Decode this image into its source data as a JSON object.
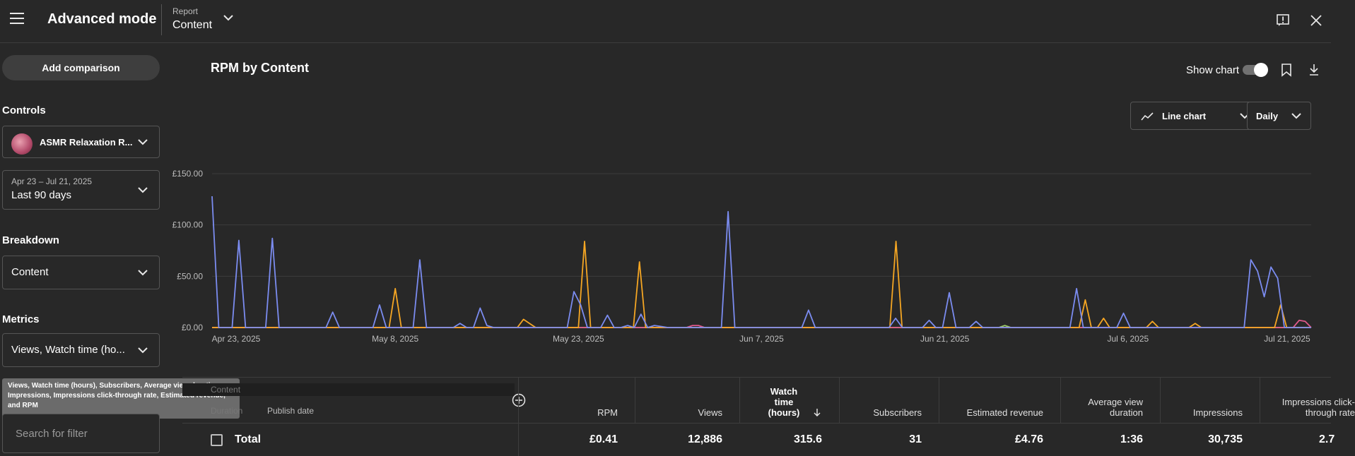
{
  "header": {
    "title": "Advanced mode",
    "report_label": "Report",
    "report_value": "Content"
  },
  "sidebar": {
    "add_comparison": "Add comparison",
    "controls_label": "Controls",
    "channel_name": "ASMR Relaxation R...",
    "date_range_small": "Apr 23 – Jul 21, 2025",
    "date_range_value": "Last 90 days",
    "breakdown_label": "Breakdown",
    "breakdown_value": "Content",
    "metrics_label": "Metrics",
    "metrics_value": "Views, Watch time (ho...",
    "metrics_tooltip": "Views, Watch time (hours), Subscribers, Average view duration, Impressions, Impressions click-through rate, Estimated revenue, and RPM",
    "search_placeholder": "Search for filter"
  },
  "main": {
    "chart_title": "RPM by Content",
    "show_chart_label": "Show chart",
    "chart_type_label": "Line chart",
    "interval_label": "Daily"
  },
  "chart_data": {
    "type": "line",
    "title": "RPM by Content",
    "xlabel": "",
    "ylabel": "",
    "ylim": [
      0,
      150
    ],
    "y_ticks": [
      "£0.00",
      "£50.00",
      "£100.00",
      "£150.00"
    ],
    "x_ticks": [
      "Apr 23, 2025",
      "May 8, 2025",
      "May 23, 2025",
      "Jun 7, 2025",
      "Jun 21, 2025",
      "Jul 6, 2025",
      "Jul 21, 2025"
    ],
    "grid": true,
    "colors": [
      "#7b8cf0",
      "#f5a623",
      "#e0598b",
      "#9ccc65"
    ],
    "series": [
      {
        "values": [
          128,
          0,
          0,
          0,
          85,
          0,
          0,
          0,
          0,
          87,
          0,
          0,
          0,
          0,
          0,
          0,
          0,
          0,
          15,
          0,
          0,
          0,
          0,
          0,
          0,
          22,
          0,
          0,
          0,
          0,
          0,
          66,
          0,
          0,
          0,
          0,
          0,
          4,
          0,
          0,
          19,
          2,
          0,
          0,
          0,
          0,
          0,
          0,
          0,
          0,
          0,
          0,
          0,
          0,
          35,
          22,
          0,
          0,
          0,
          12,
          0,
          0,
          2,
          0,
          13,
          0,
          2,
          1,
          0,
          0,
          0,
          0,
          0,
          0,
          0,
          0,
          0,
          113,
          0,
          0,
          0,
          0,
          0,
          0,
          0,
          0,
          0,
          0,
          0,
          17,
          0,
          0,
          0,
          0,
          0,
          0,
          0,
          0,
          0,
          0,
          0,
          0,
          9,
          0,
          0,
          0,
          0,
          7,
          0,
          0,
          34,
          0,
          0,
          0,
          6,
          0,
          0,
          0,
          0,
          0,
          0,
          0,
          0,
          0,
          0,
          0,
          0,
          0,
          0,
          38,
          0,
          0,
          0,
          0,
          0,
          0,
          14,
          0,
          0,
          0,
          0,
          0,
          0,
          0,
          0,
          0,
          0,
          0,
          0,
          0,
          0,
          0,
          0,
          0,
          0,
          66,
          55,
          30,
          59,
          48,
          0,
          0,
          0,
          0,
          0
        ]
      },
      {
        "values": [
          0,
          0,
          0,
          0,
          0,
          0,
          0,
          0,
          0,
          0,
          0,
          0,
          0,
          0,
          0,
          0,
          0,
          0,
          0,
          0,
          0,
          0,
          0,
          0,
          0,
          0,
          0,
          0,
          0,
          0,
          38,
          0,
          0,
          0,
          0,
          0,
          0,
          0,
          0,
          0,
          0,
          0,
          0,
          0,
          0,
          0,
          0,
          0,
          0,
          0,
          0,
          8,
          4,
          0,
          0,
          0,
          0,
          0,
          0,
          0,
          0,
          84,
          0,
          0,
          0,
          0,
          0,
          0,
          0,
          0,
          64,
          0,
          0,
          0,
          0,
          0,
          0,
          0,
          0,
          0,
          0,
          0,
          0,
          0,
          0,
          0,
          0,
          0,
          0,
          0,
          0,
          0,
          0,
          0,
          0,
          0,
          0,
          0,
          0,
          0,
          0,
          0,
          0,
          0,
          0,
          0,
          0,
          0,
          0,
          0,
          0,
          0,
          84,
          0,
          0,
          0,
          0,
          0,
          0,
          0,
          0,
          0,
          0,
          0,
          0,
          0,
          0,
          0,
          0,
          0,
          0,
          0,
          0,
          0,
          0,
          0,
          0,
          0,
          0,
          0,
          0,
          0,
          0,
          27,
          0,
          0,
          9,
          0,
          0,
          0,
          0,
          0,
          0,
          0,
          6,
          0,
          0,
          0,
          0,
          0,
          0,
          4,
          0,
          0,
          0,
          0,
          0,
          0,
          0,
          0,
          0,
          0,
          0,
          0,
          0,
          22,
          0,
          0,
          0,
          0,
          0
        ]
      },
      {
        "values": [
          0,
          0,
          0,
          0,
          0,
          0,
          0,
          0,
          0,
          0,
          0,
          0,
          0,
          0,
          0,
          0,
          0,
          0,
          0,
          0,
          0,
          0,
          0,
          0,
          0,
          0,
          0,
          0,
          0,
          0,
          0,
          0,
          0,
          0,
          0,
          0,
          0,
          0,
          0,
          0,
          0,
          0,
          0,
          0,
          0,
          0,
          0,
          0,
          0,
          0,
          0,
          0,
          0,
          0,
          0,
          0,
          0,
          0,
          0,
          0,
          0,
          0,
          0,
          0,
          0,
          0,
          0,
          0,
          0,
          0,
          0,
          0,
          0,
          0,
          0,
          0,
          0,
          0,
          0,
          0,
          2,
          2,
          0,
          0,
          0,
          0,
          0,
          0,
          0,
          0,
          0,
          0,
          0,
          0,
          0,
          0,
          0,
          0,
          0,
          0,
          0,
          0,
          0,
          0,
          0,
          0,
          0,
          0,
          0,
          0,
          0,
          0,
          0,
          0,
          0,
          0,
          0,
          0,
          0,
          0,
          0,
          0,
          0,
          0,
          0,
          0,
          0,
          0,
          0,
          0,
          0,
          0,
          0,
          0,
          0,
          0,
          0,
          0,
          0,
          0,
          0,
          0,
          0,
          0,
          0,
          0,
          0,
          0,
          0,
          0,
          0,
          0,
          0,
          0,
          0,
          0,
          0,
          0,
          0,
          0,
          0,
          0,
          0,
          0,
          0,
          0,
          0,
          0,
          0,
          0,
          0,
          0,
          0,
          0,
          0,
          0,
          0,
          0,
          0,
          0,
          0,
          7,
          6,
          0
        ]
      },
      {
        "values": [
          0,
          0,
          0,
          0,
          0,
          0,
          0,
          0,
          0,
          0,
          0,
          0,
          0,
          0,
          0,
          0,
          0,
          0,
          0,
          0,
          0,
          0,
          0,
          0,
          0,
          0,
          0,
          0,
          0,
          0,
          0,
          0,
          0,
          0,
          0,
          0,
          0,
          0,
          0,
          0,
          0,
          0,
          0,
          0,
          0,
          0,
          0,
          0,
          0,
          0,
          0,
          0,
          0,
          0,
          0,
          0,
          0,
          0,
          0,
          0,
          0,
          0,
          0,
          0,
          0,
          0,
          0,
          0,
          0,
          0,
          0,
          0,
          0,
          0,
          0,
          0,
          0,
          0,
          0,
          0,
          0,
          0,
          0,
          0,
          0,
          0,
          0,
          0,
          0,
          0,
          0,
          0,
          0,
          0,
          0,
          0,
          0,
          0,
          0,
          0,
          0,
          0,
          0,
          0,
          0,
          0,
          0,
          0,
          0,
          0,
          0,
          0,
          0,
          0,
          0,
          0,
          0,
          0,
          0,
          0,
          0,
          0,
          0,
          0,
          0,
          0,
          0,
          0,
          0,
          0,
          0,
          0,
          2,
          0,
          0,
          0,
          0,
          0,
          0,
          0,
          0,
          0,
          0,
          0,
          0,
          0,
          0,
          0,
          0,
          0,
          0,
          0,
          0,
          0,
          0,
          0,
          0,
          0,
          0,
          0,
          0,
          0,
          0,
          0,
          0,
          0,
          0,
          0,
          0,
          0,
          0,
          0,
          0,
          0,
          0,
          0,
          0,
          0,
          0,
          0,
          0,
          0,
          0,
          0
        ]
      }
    ]
  },
  "table": {
    "content_chip": "Content",
    "duration_label": "Duration",
    "publish_date_label": "Publish date",
    "columns": [
      {
        "label": "RPM"
      },
      {
        "label": "Views"
      },
      {
        "label": "Watch time (hours)"
      },
      {
        "label": "Subscribers"
      },
      {
        "label": "Estimated revenue"
      },
      {
        "label": "Average view duration"
      },
      {
        "label": "Impressions"
      },
      {
        "label": "Impressions click-through rate"
      }
    ],
    "total_label": "Total",
    "totals": [
      "£0.41",
      "12,886",
      "315.6",
      "31",
      "£4.76",
      "1:36",
      "30,735",
      "2.7"
    ]
  }
}
